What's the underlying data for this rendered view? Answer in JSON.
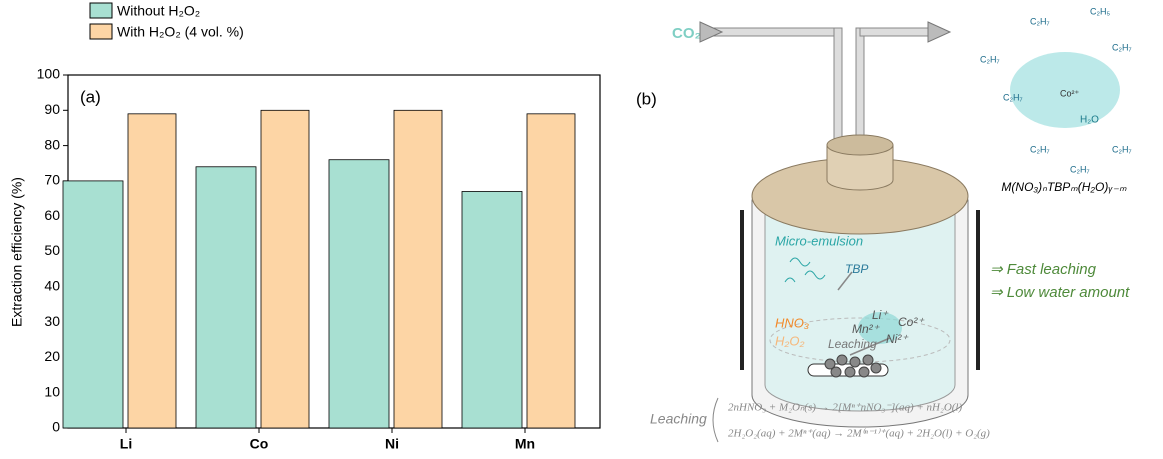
{
  "chart_data": {
    "type": "bar",
    "panel": "(a)",
    "y_label": "Extraction efficiency (%)",
    "categories": [
      "Li",
      "Co",
      "Ni",
      "Mn"
    ],
    "series": [
      {
        "name": "Without H₂O₂",
        "color": "#a8e0d2",
        "values": [
          70,
          74,
          76,
          67
        ]
      },
      {
        "name": "With H₂O₂ (4 vol. %)",
        "color": "#fdd5a5",
        "values": [
          89,
          90,
          90,
          89
        ]
      }
    ],
    "ylim": [
      0,
      100
    ],
    "yticks": [
      0,
      10,
      20,
      30,
      40,
      50,
      60,
      70,
      80,
      90,
      100
    ],
    "grid": false
  },
  "diagram": {
    "panel": "(b)",
    "gas": "CO₂",
    "complex": "M(NO₃)ₙTBPₘ(H₂O)ᵧ₋ₘ",
    "molecule": {
      "center": "Co²⁺",
      "water": "H₂O",
      "groups": [
        "C₂H₅",
        "C₂H₇",
        "C₂H₇",
        "C₂H₇",
        "C₂H₇",
        "C₂H₇",
        "C₂H₇",
        "C₂H₇"
      ]
    },
    "benefits": [
      "⇒ Fast leaching",
      "⇒ Low water amount"
    ],
    "vessel": {
      "emulsion": "Micro-emulsion",
      "tbp": "TBP",
      "acid": "HNO₃",
      "peroxide": "H₂O₂",
      "process": "Leaching",
      "ions": [
        "Li⁺",
        "Co²⁺",
        "Mn²⁺",
        "Ni²⁺"
      ]
    },
    "reaction_label": "Leaching",
    "equations": [
      "2nHNO₃ + M₂Oₙ(s) → 2[Mⁿ⁺nNO₃⁻](aq) + nH₂O(l)",
      "2H₂O₂(aq) + 2Mⁿ⁺(aq) → 2M⁽ⁿ⁻¹⁾⁺(aq) + 2H₂O(l) + O₂(g)"
    ]
  }
}
